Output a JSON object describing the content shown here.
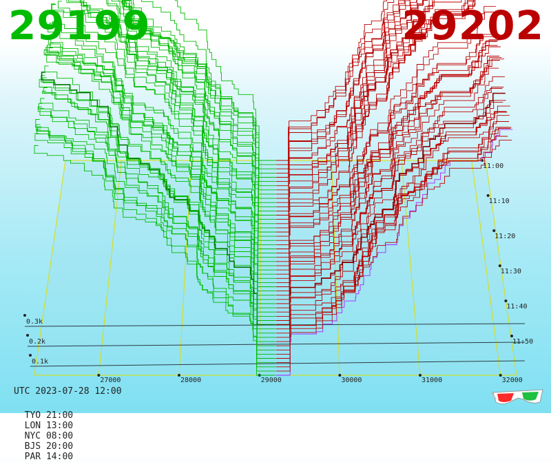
{
  "header": {
    "bid_price": "29199",
    "ask_price": "29202"
  },
  "footer": {
    "utc": "UTC 2023-07-28 12:00",
    "timezones": [
      "TYO 21:00",
      "LON 13:00",
      "NYC 08:00",
      "BJS 20:00",
      "PAR 14:00"
    ]
  },
  "colors": {
    "bid": "#00bb00",
    "ask": "#bb0000",
    "grid": "#dddd00",
    "axis": "#222222",
    "latest_ask_edge": "#aa22ff"
  },
  "icons": {
    "stereo_glasses": "3d-glasses-icon"
  },
  "chart_data": {
    "type": "area",
    "title": "",
    "x_axis": {
      "ticks": [
        "27000",
        "28000",
        "29000",
        "30000",
        "31000",
        "32000"
      ]
    },
    "z_axis": {
      "ticks": [
        "0.1k",
        "0.2k",
        "0.3k"
      ]
    },
    "time_axis": {
      "ticks": [
        "11:00",
        "11:10",
        "11:20",
        "11:30",
        "11:40",
        "11:50"
      ]
    },
    "series": [
      {
        "name": "bid",
        "side": "bid",
        "price_range": [
          26200,
          29199
        ]
      },
      {
        "name": "ask",
        "side": "ask",
        "price_range": [
          29202,
          32200
        ]
      }
    ],
    "grid": true
  }
}
